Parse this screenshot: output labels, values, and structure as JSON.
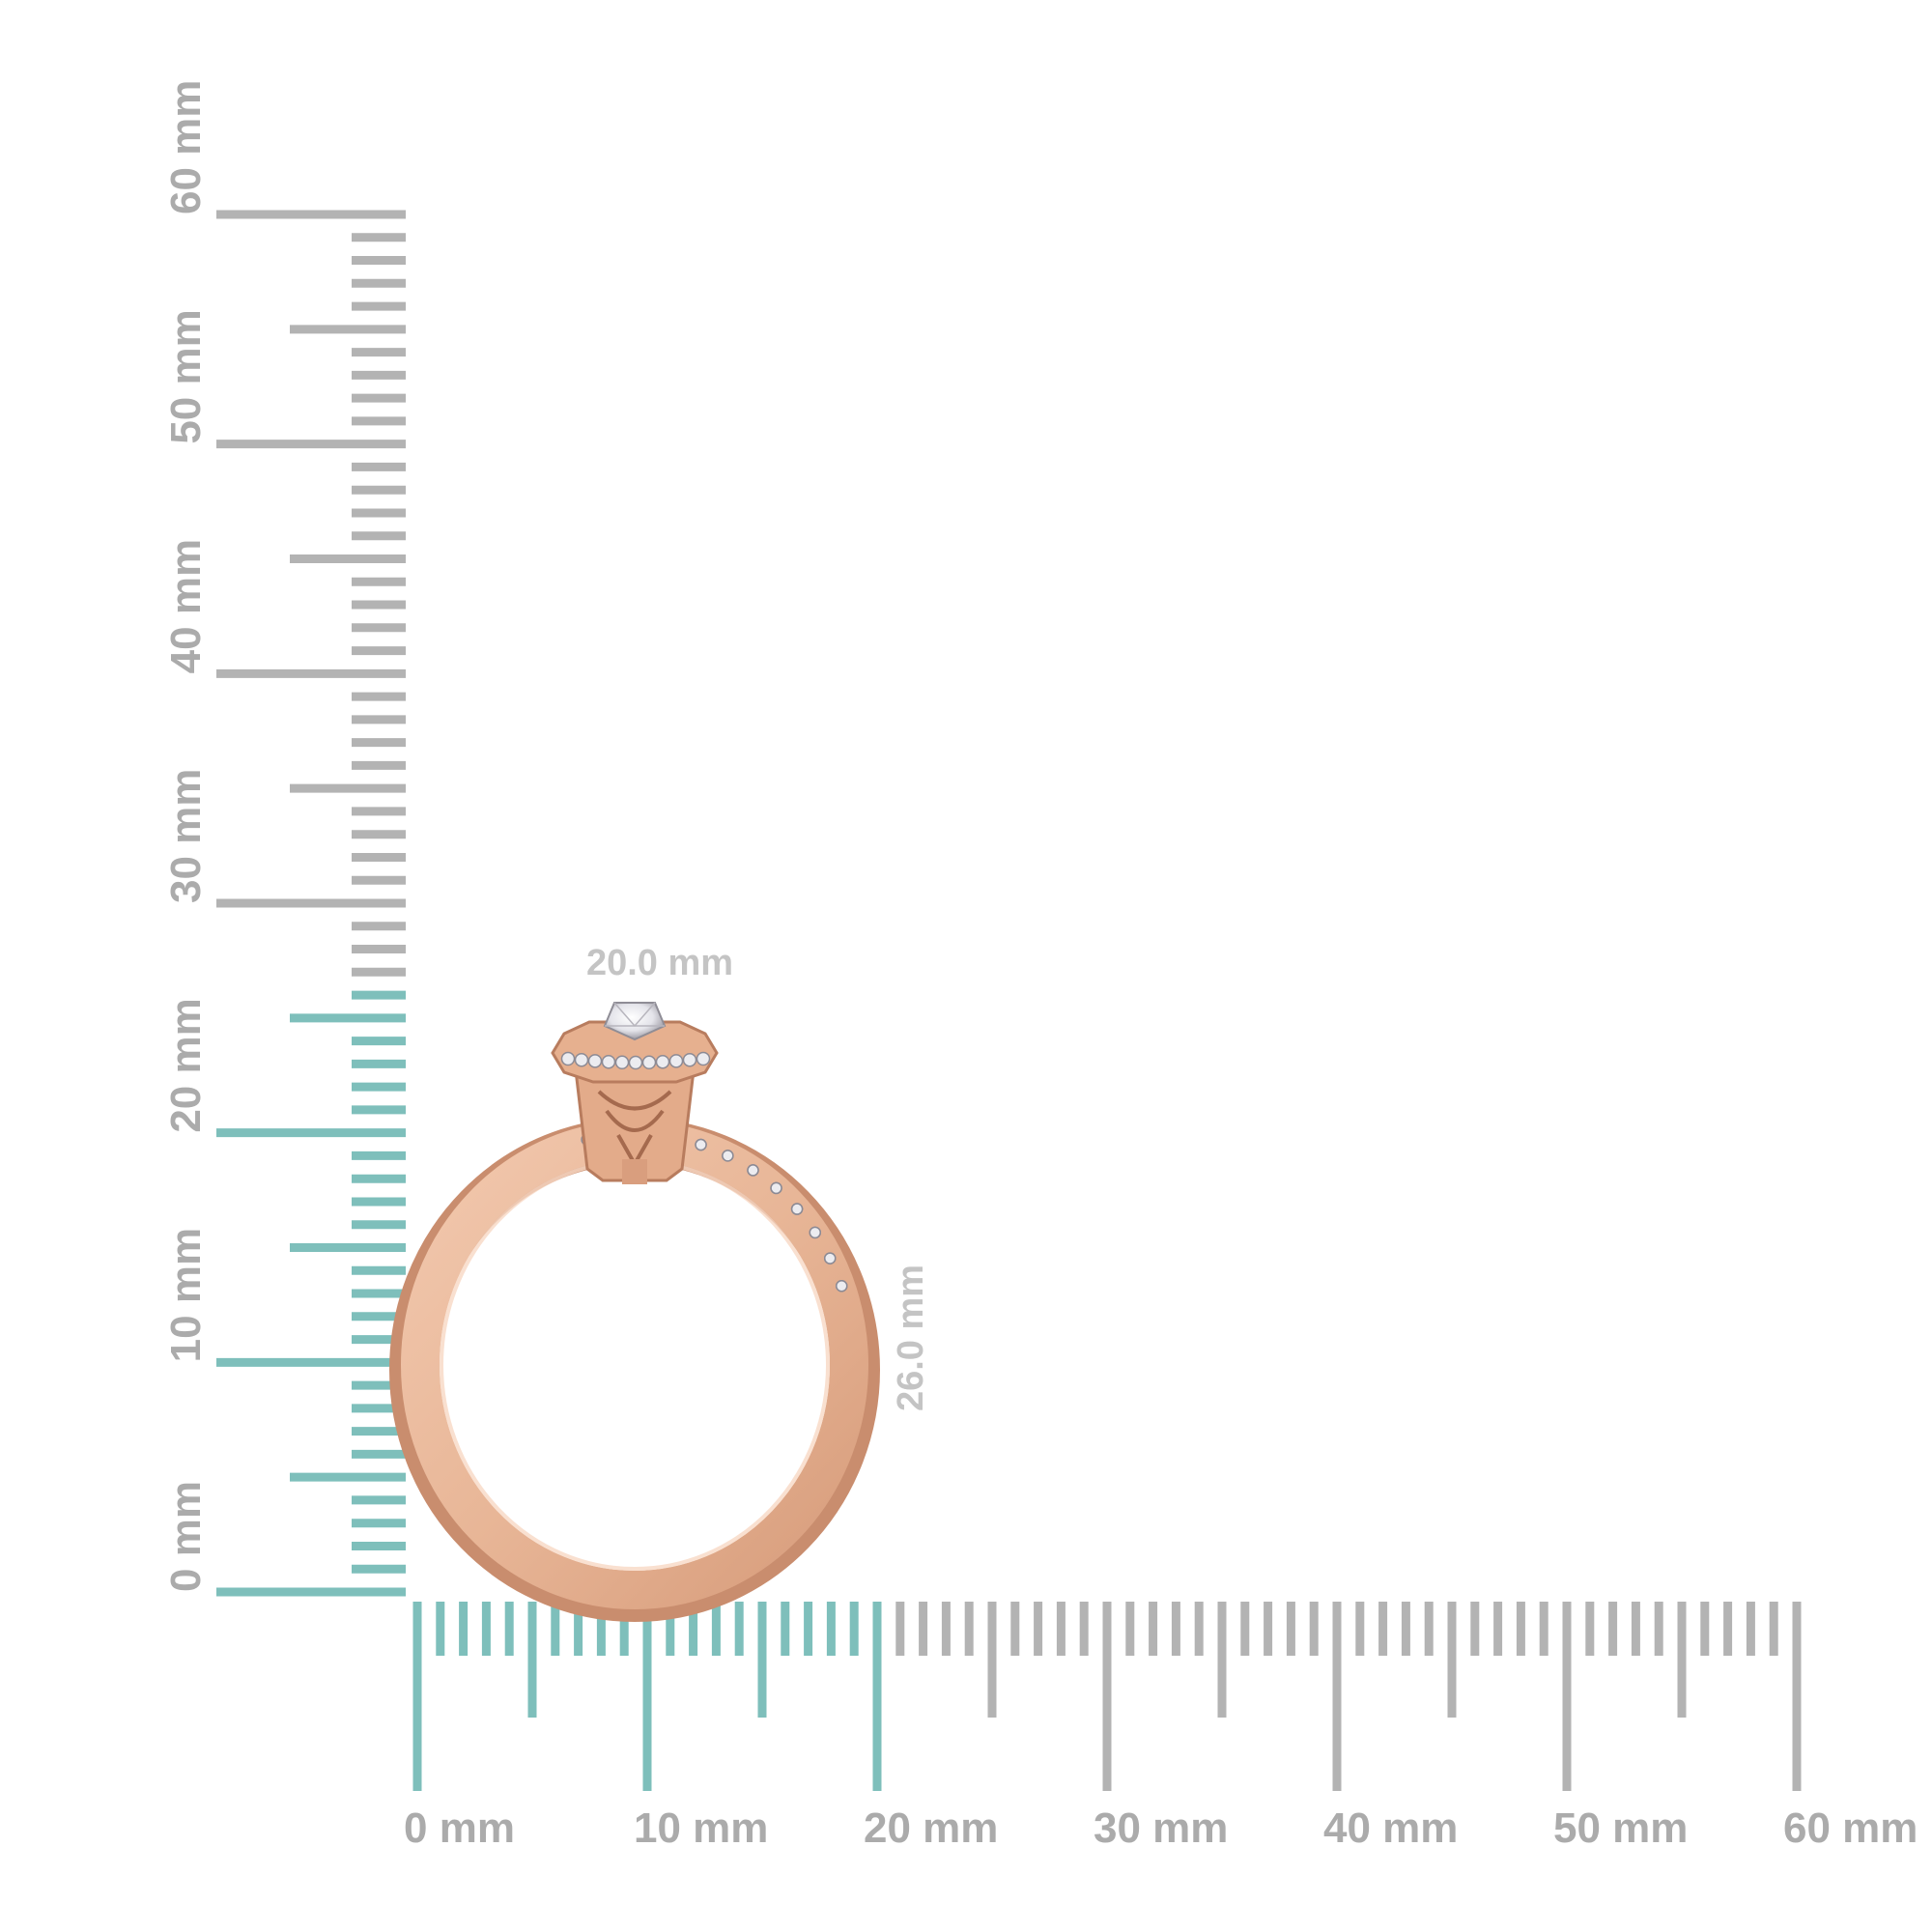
{
  "scale": {
    "unit": "mm",
    "range": [
      0,
      60
    ],
    "highlight_limit_x_mm": 20,
    "highlight_limit_y_mm": 26,
    "colors": {
      "tick_gray": "#b3b3b3",
      "tick_teal": "#7ebfbb",
      "label_gray": "#ababab",
      "measure_label": "#c4c4c4"
    },
    "x_labels": [
      "0 mm",
      "10 mm",
      "20 mm",
      "30 mm",
      "40 mm",
      "50 mm",
      "60 mm"
    ],
    "y_labels": [
      "0 mm",
      "10 mm",
      "20 mm",
      "30 mm",
      "40 mm",
      "50 mm",
      "60 mm"
    ]
  },
  "measurements": {
    "width_label": "20.0 mm",
    "height_label": "26.0 mm"
  },
  "product": {
    "subject": "ring",
    "metal_color": "#e8b697",
    "metal_shadow": "#c98d6e",
    "stone_color": "#e9e9ee"
  }
}
